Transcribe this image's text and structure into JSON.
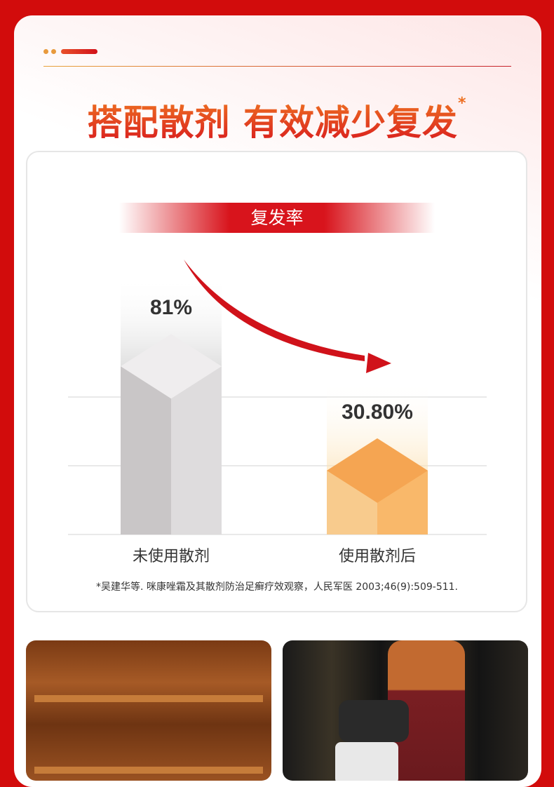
{
  "header": {
    "title": "搭配散剂 有效减少复发",
    "title_mark": "*"
  },
  "chart_data": {
    "type": "bar",
    "title": "复发率",
    "categories": [
      "未使用散剂",
      "使用散剂后"
    ],
    "values": [
      81,
      30.8
    ],
    "value_labels": [
      "81%",
      "30.80%"
    ],
    "grid": true,
    "colors": [
      "#d9d7d8",
      "#f5a552"
    ]
  },
  "footnote": "*吴建华等. 咪康唑霜及其散剂防治足癣疗效观察，人民军医 2003;46(9):509-511."
}
